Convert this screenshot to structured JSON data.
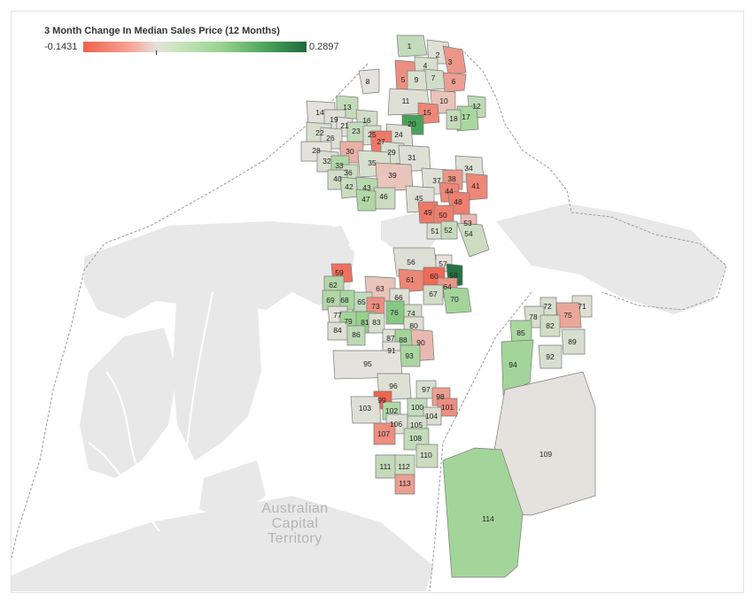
{
  "legend": {
    "title": "3 Month Change In Median Sales Price (12 Months)",
    "min_label": "-0.1431",
    "max_label": "0.2897",
    "colors": {
      "negative": "#f0614d",
      "neutral": "#e5e1dc",
      "positive_strong": "#206a3e"
    }
  },
  "region_label": {
    "line1": "Australian",
    "line2": "Capital",
    "line3": "Territory"
  },
  "suburbs": [
    {
      "id": "1",
      "value": 0.05
    },
    {
      "id": "2",
      "value": 0.01
    },
    {
      "id": "3",
      "value": -0.07
    },
    {
      "id": "4",
      "value": 0.02
    },
    {
      "id": "5",
      "value": -0.08
    },
    {
      "id": "6",
      "value": -0.06
    },
    {
      "id": "7",
      "value": 0.03
    },
    {
      "id": "8",
      "value": 0.0
    },
    {
      "id": "9",
      "value": 0.02
    },
    {
      "id": "10",
      "value": -0.02
    },
    {
      "id": "11",
      "value": 0.01
    },
    {
      "id": "12",
      "value": 0.06
    },
    {
      "id": "13",
      "value": 0.05
    },
    {
      "id": "14",
      "value": 0.0
    },
    {
      "id": "15",
      "value": -0.09
    },
    {
      "id": "16",
      "value": 0.03
    },
    {
      "id": "17",
      "value": 0.09
    },
    {
      "id": "18",
      "value": 0.05
    },
    {
      "id": "19",
      "value": 0.01
    },
    {
      "id": "20",
      "value": 0.22
    },
    {
      "id": "21",
      "value": 0.0
    },
    {
      "id": "22",
      "value": 0.02
    },
    {
      "id": "23",
      "value": 0.05
    },
    {
      "id": "24",
      "value": 0.01
    },
    {
      "id": "25",
      "value": 0.02
    },
    {
      "id": "26",
      "value": 0.01
    },
    {
      "id": "27",
      "value": -0.11
    },
    {
      "id": "28",
      "value": 0.0
    },
    {
      "id": "29",
      "value": 0.02
    },
    {
      "id": "30",
      "value": -0.04
    },
    {
      "id": "31",
      "value": 0.01
    },
    {
      "id": "32",
      "value": 0.02
    },
    {
      "id": "33",
      "value": 0.08
    },
    {
      "id": "34",
      "value": 0.01
    },
    {
      "id": "35",
      "value": 0.02
    },
    {
      "id": "36",
      "value": 0.04
    },
    {
      "id": "37",
      "value": 0.01
    },
    {
      "id": "38",
      "value": -0.07
    },
    {
      "id": "39",
      "value": -0.02
    },
    {
      "id": "40",
      "value": 0.03
    },
    {
      "id": "41",
      "value": -0.09
    },
    {
      "id": "42",
      "value": 0.04
    },
    {
      "id": "43",
      "value": 0.07
    },
    {
      "id": "44",
      "value": -0.09
    },
    {
      "id": "45",
      "value": 0.01
    },
    {
      "id": "46",
      "value": 0.04
    },
    {
      "id": "47",
      "value": 0.08
    },
    {
      "id": "48",
      "value": -0.1
    },
    {
      "id": "49",
      "value": -0.11
    },
    {
      "id": "50",
      "value": -0.1
    },
    {
      "id": "51",
      "value": 0.02
    },
    {
      "id": "52",
      "value": 0.05
    },
    {
      "id": "53",
      "value": -0.03
    },
    {
      "id": "54",
      "value": 0.04
    },
    {
      "id": "56",
      "value": 0.01
    },
    {
      "id": "57",
      "value": 0.0
    },
    {
      "id": "58",
      "value": 0.28
    },
    {
      "id": "59",
      "value": -0.12
    },
    {
      "id": "60",
      "value": -0.13
    },
    {
      "id": "61",
      "value": -0.09
    },
    {
      "id": "62",
      "value": 0.08
    },
    {
      "id": "63",
      "value": -0.02
    },
    {
      "id": "64",
      "value": -0.07
    },
    {
      "id": "65",
      "value": 0.05
    },
    {
      "id": "66",
      "value": 0.01
    },
    {
      "id": "67",
      "value": 0.03
    },
    {
      "id": "68",
      "value": 0.09
    },
    {
      "id": "69",
      "value": 0.08
    },
    {
      "id": "70",
      "value": 0.1
    },
    {
      "id": "71",
      "value": 0.01
    },
    {
      "id": "72",
      "value": 0.02
    },
    {
      "id": "73",
      "value": -0.08
    },
    {
      "id": "74",
      "value": 0.03
    },
    {
      "id": "75",
      "value": -0.05
    },
    {
      "id": "76",
      "value": 0.14
    },
    {
      "id": "77",
      "value": 0.0
    },
    {
      "id": "78",
      "value": 0.02
    },
    {
      "id": "79",
      "value": 0.1
    },
    {
      "id": "80",
      "value": 0.01
    },
    {
      "id": "81",
      "value": 0.12
    },
    {
      "id": "82",
      "value": 0.03
    },
    {
      "id": "83",
      "value": 0.02
    },
    {
      "id": "84",
      "value": 0.01
    },
    {
      "id": "85",
      "value": 0.09
    },
    {
      "id": "86",
      "value": 0.06
    },
    {
      "id": "87",
      "value": 0.01
    },
    {
      "id": "88",
      "value": 0.1
    },
    {
      "id": "89",
      "value": 0.02
    },
    {
      "id": "90",
      "value": -0.03
    },
    {
      "id": "91",
      "value": 0.0
    },
    {
      "id": "92",
      "value": 0.02
    },
    {
      "id": "93",
      "value": 0.09
    },
    {
      "id": "94",
      "value": 0.1
    },
    {
      "id": "95",
      "value": 0.0
    },
    {
      "id": "96",
      "value": 0.01
    },
    {
      "id": "97",
      "value": 0.02
    },
    {
      "id": "98",
      "value": -0.06
    },
    {
      "id": "99",
      "value": -0.14
    },
    {
      "id": "100",
      "value": 0.05
    },
    {
      "id": "101",
      "value": -0.08
    },
    {
      "id": "102",
      "value": 0.08
    },
    {
      "id": "103",
      "value": 0.01
    },
    {
      "id": "104",
      "value": 0.02
    },
    {
      "id": "105",
      "value": 0.03
    },
    {
      "id": "106",
      "value": 0.01
    },
    {
      "id": "107",
      "value": -0.08
    },
    {
      "id": "108",
      "value": 0.05
    },
    {
      "id": "109",
      "value": 0.0
    },
    {
      "id": "110",
      "value": 0.04
    },
    {
      "id": "111",
      "value": 0.05
    },
    {
      "id": "112",
      "value": 0.04
    },
    {
      "id": "113",
      "value": -0.06
    },
    {
      "id": "114",
      "value": 0.1
    }
  ]
}
